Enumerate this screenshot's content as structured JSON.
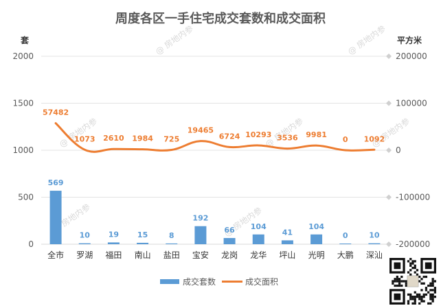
{
  "chart_data": {
    "type": "bar",
    "title": "周度各区一手住宅成交套数和成交面积",
    "left_axis_unit": "套",
    "right_axis_unit": "平方米",
    "categories": [
      "全市",
      "罗湖",
      "福田",
      "南山",
      "盐田",
      "宝安",
      "龙岗",
      "龙华",
      "坪山",
      "光明",
      "大鹏",
      "深汕"
    ],
    "series": [
      {
        "name": "成交套数",
        "type": "bar",
        "axis": "left",
        "color": "#5b9bd5",
        "values": [
          569,
          10,
          19,
          15,
          8,
          192,
          66,
          104,
          41,
          104,
          0,
          10
        ],
        "labels": [
          "569",
          "10",
          "19",
          "15",
          "8",
          "192",
          "66",
          "104",
          "41",
          "104",
          "0",
          "10"
        ]
      },
      {
        "name": "成交面积",
        "type": "line",
        "axis": "right",
        "color": "#ed7d31",
        "values": [
          57482,
          1073,
          2610,
          1984,
          725,
          19465,
          6724,
          10293,
          3536,
          9981,
          0,
          1092
        ],
        "labels": [
          "57482",
          "1073",
          "2610",
          "1984",
          "725",
          "19465",
          "6724",
          "10293",
          "3536",
          "9981",
          "0",
          "1092"
        ]
      }
    ],
    "ylim_left": [
      0,
      2000
    ],
    "yticks_left": [
      "0",
      "500",
      "1000",
      "1500",
      "2000"
    ],
    "ylim_right": [
      -200000,
      200000
    ],
    "yticks_right": [
      "-200000",
      "-100000",
      "0",
      "100000",
      "200000"
    ],
    "grid": true,
    "legend_position": "bottom",
    "watermark": "@ 房地内参"
  }
}
